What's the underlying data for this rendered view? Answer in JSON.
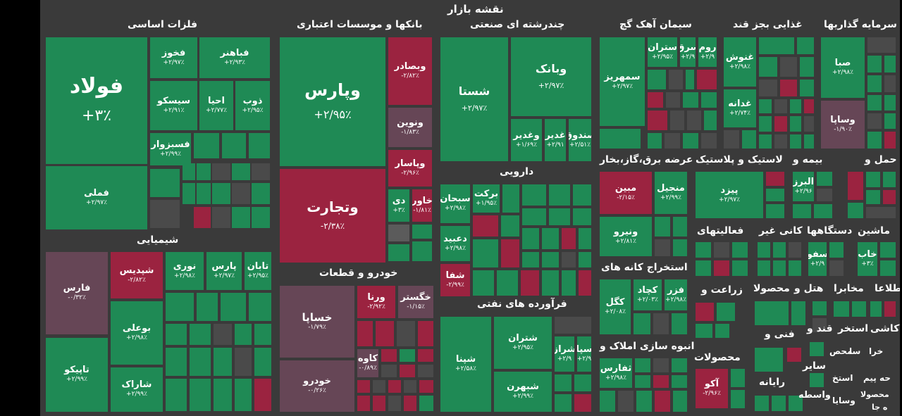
{
  "title": "نقشه بازار",
  "sectors": {
    "basic_metals": "فلزات اساسی",
    "banks": "بانکها و موسسات اعتباری",
    "multi": "چندرشته ای صنعتی",
    "cement": "سیمان آهک گچ",
    "sugar": "غذایی بجز قند",
    "investment": "سرمایه گذاریها",
    "chemical": "شیمیایی",
    "auto": "خودرو و قطعات",
    "pharma": "دارویی",
    "oil": "فرآورده های نفتی",
    "utilities": "عرضه برق،گاز،بخار",
    "rubber": "لاستیک و پلاستیک",
    "insurance": "بیمه و",
    "transport": "حمل و",
    "mining": "استخراج کانه های",
    "activities": "فعالیتهای",
    "nonmetal": "کانی غیر",
    "devices": "دستگاهها",
    "machinery": "ماشین",
    "agri": "زراعت و",
    "products1": "محصولا",
    "hotel": "هتل و",
    "telecom": "مخابرا",
    "info": "اطلاعا",
    "realestate": "انبوه سازی املاک و",
    "technical": "فنی و",
    "products2": "محصولات",
    "computer": "رایانه",
    "sugar2": "قند و",
    "mining2": "استخر",
    "tile": "کاشی",
    "retail": "خرا",
    "sa": "سا",
    "mohas": "محص",
    "other": "سایر",
    "peyma": "حه پیم",
    "estakh": "استخ",
    "vaseteh": "واسطه",
    "vasaya": "وسایا",
    "mahsa": "محصولا",
    "hal": "ه جا"
  },
  "tiles": {
    "foolad": {
      "name": "فولاد",
      "value": "+۳٪"
    },
    "fameli": {
      "name": "فملی",
      "value": "+۲/۹۷٪"
    },
    "fakhuz": {
      "name": "فخوز",
      "value": "+۲/۹۷٪"
    },
    "fabahonar": {
      "name": "فباهنر",
      "value": "+۲/۹۳٪"
    },
    "sepesco": {
      "name": "سیسکو",
      "value": "+۲/۹۱٪"
    },
    "ahya": {
      "name": "احیا",
      "value": "+۲/۷۷٪"
    },
    "zob": {
      "name": "ذوب",
      "value": "+۲/۹۵٪"
    },
    "fasabzevar": {
      "name": "فسبزوار",
      "value": "+۲/۹۹٪"
    },
    "vapars": {
      "name": "وپارس",
      "value": "+۲/۹۵٪"
    },
    "vabsader": {
      "name": "وبصادر",
      "value": "-۲/۸۲٪"
    },
    "vanovin": {
      "name": "ونوین",
      "value": "-۱/۸۳٪"
    },
    "vapasar": {
      "name": "وپاسار",
      "value": "-۲/۹۶٪"
    },
    "vatejarat": {
      "name": "وتجارت",
      "value": "-۲/۳۸٪"
    },
    "di": {
      "name": "دی",
      "value": "+۳٪"
    },
    "khavar": {
      "name": "خاور",
      "value": "-۱/۸۱٪"
    },
    "shasta": {
      "name": "شستا",
      "value": "+۲/۹۷٪"
    },
    "vabank": {
      "name": "وبانک",
      "value": "+۲/۹۷٪"
    },
    "vaghadir": {
      "name": "وغدیر",
      "value": "+۱/۶۹٪"
    },
    "ghadir": {
      "name": "غدیر",
      "value": "+۲/۹۱"
    },
    "sanduq": {
      "name": "صندوق",
      "value": "+۲/۵۱٪"
    },
    "sepahrizan": {
      "name": "سمهریز",
      "value": "+۲/۹۷٪"
    },
    "sasteran": {
      "name": "ستران",
      "value": "+۲/۹۵٪"
    },
    "sorgh": {
      "name": "سرق",
      "value": "+۲/۹"
    },
    "srum": {
      "name": "روم",
      "value": "+۲/۹"
    },
    "ghanush": {
      "name": "غنوش",
      "value": "+۲/۹۸٪"
    },
    "ghadaneh": {
      "name": "غدانه",
      "value": "+۲/۷۴٪"
    },
    "saba": {
      "name": "صبا",
      "value": "+۲/۹۸٪"
    },
    "vasapa": {
      "name": "وساپا",
      "value": "-۱/۹۰٪"
    },
    "fars": {
      "name": "فارس",
      "value": "-۰/۳۲٪"
    },
    "shepdis": {
      "name": "شپدیس",
      "value": "-۲/۸۲٪"
    },
    "nuri": {
      "name": "نوری",
      "value": "+۲/۹۸٪"
    },
    "pars": {
      "name": "پارس",
      "value": "+۲/۹۷٪"
    },
    "taban": {
      "name": "تابان",
      "value": "+۲/۹۵٪"
    },
    "buali": {
      "name": "بوعلی",
      "value": "+۲/۹۸٪"
    },
    "tapiko": {
      "name": "تاپیکو",
      "value": "+۲/۹۹٪"
    },
    "sharak": {
      "name": "شاراک",
      "value": "+۲/۹۹٪"
    },
    "khsapa": {
      "name": "خساپا",
      "value": "-۱/۷۹٪"
    },
    "verna": {
      "name": "ورنا",
      "value": "-۲/۹۲٪"
    },
    "khegester": {
      "name": "خگستر",
      "value": "-۱/۱۵٪"
    },
    "kaveh": {
      "name": "کاوه",
      "value": "-۰/۸۹٪"
    },
    "khodro": {
      "name": "خودرو",
      "value": "-۰/۲۶٪"
    },
    "sobhan": {
      "name": "سبحان",
      "value": "+۲/۹۸٪"
    },
    "barekat": {
      "name": "برکت",
      "value": "+۱/۹۵٪"
    },
    "dabid": {
      "name": "دعبید",
      "value": "+۲/۹۸٪"
    },
    "shafa": {
      "name": "شفا",
      "value": "-۲/۹۹٪"
    },
    "shana": {
      "name": "شپنا",
      "value": "+۲/۵۸٪"
    },
    "shetran": {
      "name": "شتران",
      "value": "+۲/۹۵٪"
    },
    "shiraz": {
      "name": "شراز",
      "value": "+۲/۹"
    },
    "sepa": {
      "name": "سپا",
      "value": "+۲/۹"
    },
    "shebahran": {
      "name": "شبهرن",
      "value": "+۲/۹۹٪"
    },
    "mobin": {
      "name": "مبین",
      "value": "-۲/۱۵٪"
    },
    "monjil": {
      "name": "منجیل",
      "value": "+۲/۹۹٪"
    },
    "vaniru": {
      "name": "ونیرو",
      "value": "+۲/۸۱٪"
    },
    "pezd": {
      "name": "پیزد",
      "value": "+۲/۹۷٪"
    },
    "alborz": {
      "name": "البرز",
      "value": "+۲/۹۶"
    },
    "kegal": {
      "name": "کگل",
      "value": "+۲/۰۸٪"
    },
    "kechad": {
      "name": "کچاد",
      "value": "+۲/۰۳٪"
    },
    "fazar": {
      "name": "فزر",
      "value": "+۲/۹۸٪"
    },
    "safa": {
      "name": "سفو",
      "value": "+۲/۹"
    },
    "khab": {
      "name": "خاب",
      "value": "+۳٪"
    },
    "theafars": {
      "name": "ثفارس",
      "value": "+۲/۹۸٪"
    },
    "akou": {
      "name": "آکو",
      "value": "-۲/۹۶٪"
    }
  }
}
